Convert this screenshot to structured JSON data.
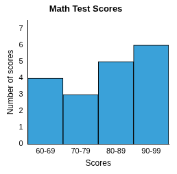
{
  "chart_data": {
    "type": "bar",
    "title": "Math Test Scores",
    "x_label": "Scores",
    "y_label": "Number of scores",
    "categories": [
      "60-69",
      "70-79",
      "80-89",
      "90-99"
    ],
    "values": [
      4,
      3,
      5,
      6
    ],
    "color": "#3aa1d9",
    "ylim": [
      0,
      7.5
    ],
    "yticks": [
      0,
      1,
      2,
      3,
      4,
      5,
      6,
      7
    ],
    "grid": false
  }
}
